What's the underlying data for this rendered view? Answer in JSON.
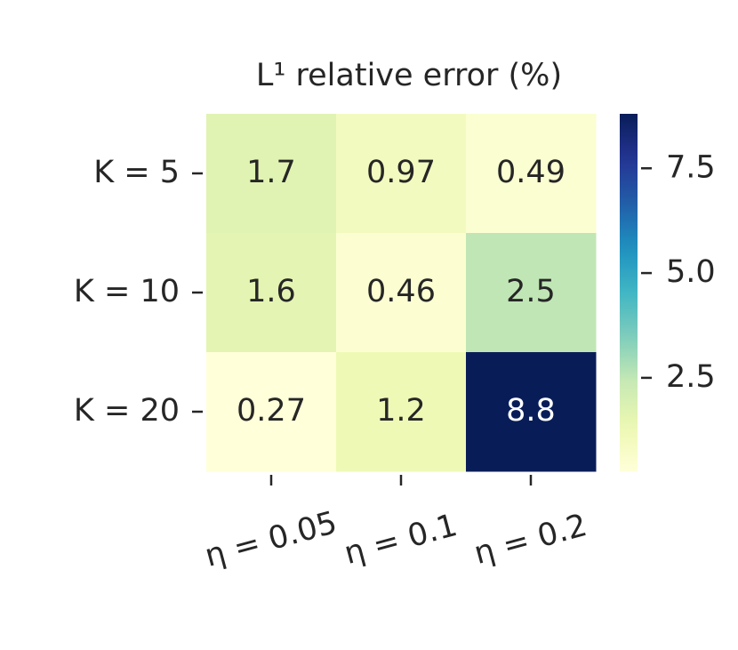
{
  "chart_data": {
    "type": "heatmap",
    "title": "L¹ relative error (%)",
    "rows": [
      "K = 5",
      "K = 10",
      "K = 20"
    ],
    "columns": [
      "η = 0.05",
      "η = 0.1",
      "η = 0.2"
    ],
    "values": [
      [
        1.7,
        0.97,
        0.49
      ],
      [
        1.6,
        0.46,
        2.5
      ],
      [
        0.27,
        1.2,
        8.8
      ]
    ],
    "colormap": "YlGnBu",
    "clim": [
      0.27,
      8.8
    ],
    "cticks": [
      2.5,
      {
        "value": 5,
        "label": "5.0"
      },
      7.5
    ]
  }
}
